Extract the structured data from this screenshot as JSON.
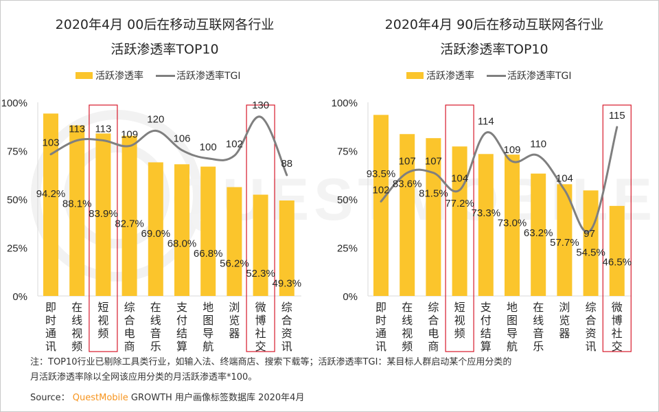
{
  "chart_data": [
    {
      "type": "bar",
      "title": "2020年4月 00后在移动互联网各行业",
      "subtitle": "活跃渗透率TOP10",
      "categories": [
        "即时通讯",
        "在线视频",
        "短视频",
        "综合电商",
        "在线音乐",
        "支付结算",
        "地图导航",
        "浏览器",
        "微博社交",
        "综合资讯"
      ],
      "series": [
        {
          "name": "活跃渗透率",
          "type": "bar",
          "axis": "left",
          "values": [
            94.2,
            88.1,
            83.9,
            82.7,
            69.0,
            68.0,
            66.8,
            56.2,
            52.3,
            49.3
          ],
          "labels": [
            "94.2%",
            "88.1%",
            "83.9%",
            "82.7%",
            "69.0%",
            "68.0%",
            "66.8%",
            "56.2%",
            "52.3%",
            "49.3%"
          ]
        },
        {
          "name": "活跃渗透率TGI",
          "type": "line",
          "axis": "secondary",
          "values": [
            103,
            113,
            113,
            109,
            120,
            106,
            100,
            102,
            130,
            88
          ]
        }
      ],
      "highlighted": [
        "短视频",
        "微博社交"
      ],
      "yticks": [
        "0%",
        "25%",
        "50%",
        "75%",
        "100%"
      ],
      "ylim": [
        0,
        100
      ],
      "legend": "top-center",
      "grid": false,
      "colors": {
        "bar": "#FBC52C",
        "line": "#7f7f7f",
        "highlight": "#D7182A"
      }
    },
    {
      "type": "bar",
      "title": "2020年4月 90后在移动互联网各行业",
      "subtitle": "活跃渗透率TOP10",
      "categories": [
        "即时通讯",
        "在线视频",
        "综合电商",
        "短视频",
        "支付结算",
        "地图导航",
        "在线音乐",
        "浏览器",
        "综合资讯",
        "微博社交"
      ],
      "series": [
        {
          "name": "活跃渗透率",
          "type": "bar",
          "axis": "left",
          "values": [
            93.5,
            83.6,
            81.5,
            77.2,
            73.3,
            73.0,
            63.2,
            57.7,
            54.5,
            46.5
          ],
          "labels": [
            "93.5%",
            "83.6%",
            "81.5%",
            "77.2%",
            "73.3%",
            "73.0%",
            "63.2%",
            "57.7%",
            "54.5%",
            "46.5%"
          ]
        },
        {
          "name": "活跃渗透率TGI",
          "type": "line",
          "axis": "secondary",
          "values": [
            102,
            107,
            107,
            104,
            114,
            109,
            110,
            104,
            97,
            115
          ]
        }
      ],
      "highlighted": [
        "短视频",
        "微博社交"
      ],
      "yticks": [
        "0%",
        "25%",
        "50%",
        "75%",
        "100%"
      ],
      "ylim": [
        0,
        100
      ],
      "legend": "top-center",
      "grid": false,
      "colors": {
        "bar": "#FBC52C",
        "line": "#7f7f7f",
        "highlight": "#D7182A"
      }
    }
  ],
  "legend_labels": {
    "bar": "活跃渗透率",
    "line": "活跃渗透率TGI"
  },
  "note": {
    "line1": "注：TOP10行业已剔除工具类行业，如输入法、终端商店、搜索下载等；活跃渗透率TGI：某目标人群启动某个应用分类的",
    "line2": "月活跃渗透率除以全网该应用分类的月活跃渗透率*100。"
  },
  "source": {
    "prefix": "Source：",
    "brand": "QuestMobile",
    "rest": "GROWTH 用户画像标签数据库 2020年4月"
  },
  "watermark": "QUESTMOBILE"
}
